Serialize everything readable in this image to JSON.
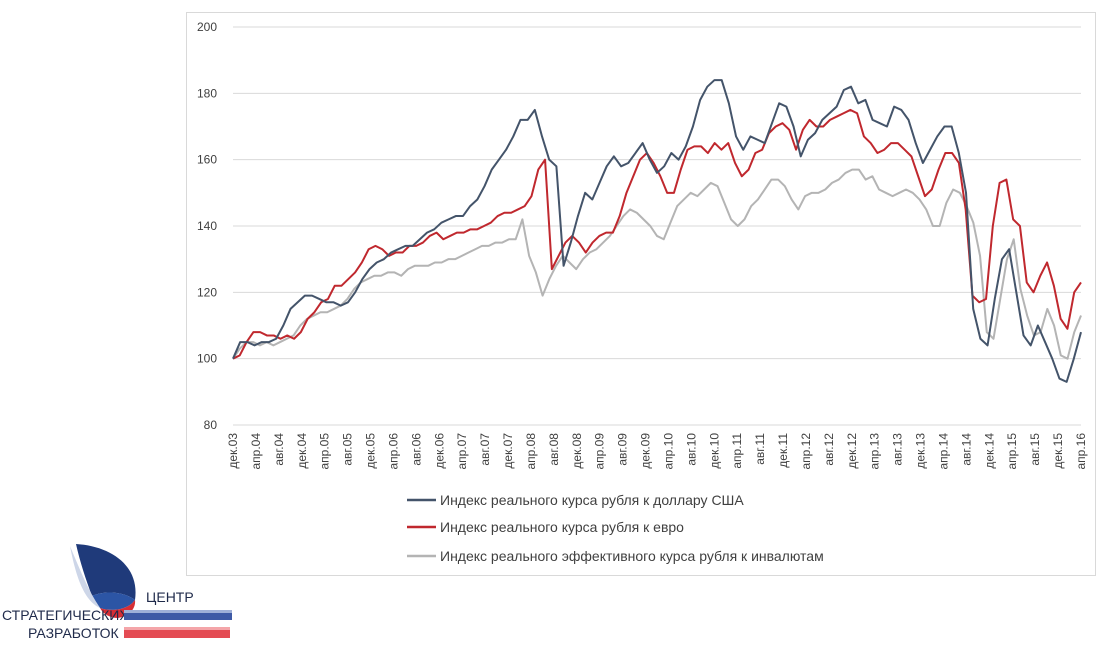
{
  "chart_data": {
    "type": "line",
    "ylim": [
      80,
      200
    ],
    "yticks": [
      80,
      100,
      120,
      140,
      160,
      180,
      200
    ],
    "x_tick_labels": [
      "дек.03",
      "апр.04",
      "авг.04",
      "дек.04",
      "апр.05",
      "авг.05",
      "дек.05",
      "апр.06",
      "авг.06",
      "дек.06",
      "апр.07",
      "авг.07",
      "дек.07",
      "апр.08",
      "авг.08",
      "дек.08",
      "апр.09",
      "авг.09",
      "дек.09",
      "апр.10",
      "авг.10",
      "дек.10",
      "апр.11",
      "авг.11",
      "дек.11",
      "апр.12",
      "авг.12",
      "дек.12",
      "апр.13",
      "авг.13",
      "дек.13",
      "апр.14",
      "авг.14",
      "дек.14",
      "апр.15",
      "авг.15",
      "дек.15",
      "апр.16"
    ],
    "grid": "horizontal",
    "legend_position": "bottom",
    "series": [
      {
        "name": "Индекс реального курса рубля к доллару США",
        "color": "#44546a",
        "values": [
          100,
          105,
          105,
          104,
          105,
          105,
          106,
          110,
          115,
          117,
          119,
          119,
          118,
          117,
          117,
          116,
          117,
          120,
          124,
          127,
          129,
          130,
          132,
          133,
          134,
          134,
          136,
          138,
          139,
          141,
          142,
          143,
          143,
          146,
          148,
          152,
          157,
          160,
          163,
          167,
          172,
          172,
          175,
          167,
          160,
          158,
          128,
          135,
          143,
          150,
          148,
          153,
          158,
          161,
          158,
          159,
          162,
          165,
          160,
          156,
          158,
          162,
          160,
          164,
          170,
          178,
          182,
          184,
          184,
          177,
          167,
          163,
          167,
          166,
          165,
          171,
          177,
          176,
          170,
          161,
          166,
          168,
          172,
          174,
          176,
          181,
          182,
          177,
          178,
          172,
          171,
          170,
          176,
          175,
          172,
          165,
          159,
          163,
          167,
          170,
          170,
          162,
          150,
          115,
          106,
          104,
          118,
          130,
          133,
          120,
          107,
          104,
          110,
          105,
          100,
          94,
          93,
          100,
          108
        ]
      },
      {
        "name": "Индекс реального курса рубля к евро",
        "color": "#c0282e",
        "values": [
          100,
          101,
          105,
          108,
          108,
          107,
          107,
          106,
          107,
          106,
          108,
          112,
          114,
          117,
          118,
          122,
          122,
          124,
          126,
          129,
          133,
          134,
          133,
          131,
          132,
          132,
          134,
          134,
          135,
          137,
          138,
          136,
          137,
          138,
          138,
          139,
          139,
          140,
          141,
          143,
          144,
          144,
          145,
          146,
          149,
          157,
          160,
          127,
          131,
          135,
          137,
          135,
          132,
          135,
          137,
          138,
          138,
          143,
          150,
          155,
          160,
          162,
          159,
          155,
          150,
          150,
          157,
          163,
          164,
          164,
          162,
          165,
          163,
          165,
          159,
          155,
          157,
          162,
          163,
          168,
          170,
          171,
          169,
          163,
          169,
          172,
          170,
          170,
          172,
          173,
          174,
          175,
          174,
          167,
          165,
          162,
          163,
          165,
          165,
          163,
          161,
          155,
          149,
          151,
          157,
          162,
          162,
          159,
          145,
          119,
          117,
          118,
          140,
          153,
          154,
          142,
          140,
          123,
          120,
          125,
          129,
          122,
          112,
          109,
          120,
          123
        ]
      },
      {
        "name": "Индекс реального эффективного курса рубля к инвалютам",
        "color": "#b4b4b4",
        "values": [
          100,
          103,
          105,
          105,
          104,
          105,
          104,
          105,
          106,
          107,
          110,
          112,
          113,
          114,
          114,
          115,
          116,
          118,
          121,
          123,
          124,
          125,
          125,
          126,
          126,
          125,
          127,
          128,
          128,
          128,
          129,
          129,
          130,
          130,
          131,
          132,
          133,
          134,
          134,
          135,
          135,
          136,
          136,
          142,
          131,
          126,
          119,
          124,
          128,
          131,
          129,
          127,
          130,
          132,
          133,
          135,
          137,
          140,
          143,
          145,
          144,
          142,
          140,
          137,
          136,
          141,
          146,
          148,
          150,
          149,
          151,
          153,
          152,
          147,
          142,
          140,
          142,
          146,
          148,
          151,
          154,
          154,
          152,
          148,
          145,
          149,
          150,
          150,
          151,
          153,
          154,
          156,
          157,
          157,
          154,
          155,
          151,
          150,
          149,
          150,
          151,
          150,
          148,
          145,
          140,
          140,
          147,
          151,
          150,
          146,
          141,
          131,
          108,
          106,
          118,
          130,
          136,
          121,
          113,
          107,
          108,
          115,
          110,
          101,
          100,
          108,
          113
        ]
      }
    ]
  },
  "logo": {
    "line1": "ЦЕНТР",
    "line2": "СТРАТЕГИЧЕСКИХ",
    "line3": "РАЗРАБОТОК"
  }
}
